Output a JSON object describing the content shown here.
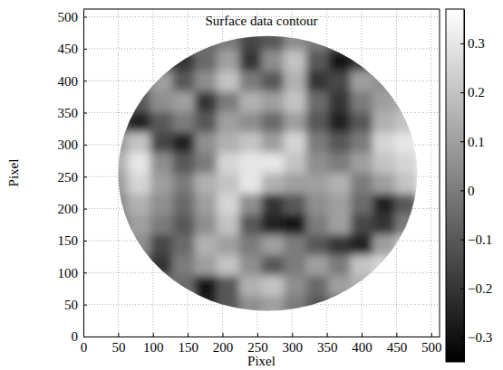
{
  "chart_data": {
    "type": "heatmap",
    "title": "Surface data contour",
    "x_label": "Pixel",
    "y_label": "Pixel",
    "xlim": [
      0,
      512
    ],
    "ylim": [
      0,
      512
    ],
    "xticks": [
      0,
      50,
      100,
      150,
      200,
      250,
      300,
      350,
      400,
      450,
      500
    ],
    "yticks": [
      0,
      50,
      100,
      150,
      200,
      250,
      300,
      350,
      400,
      450,
      500
    ],
    "grid": true,
    "x": [
      16,
      48,
      80,
      112,
      144,
      176,
      208,
      240,
      272,
      304,
      336,
      368,
      400,
      432,
      464,
      496
    ],
    "y": [
      16,
      48,
      80,
      112,
      144,
      176,
      208,
      240,
      272,
      304,
      336,
      368,
      400,
      432,
      464,
      496
    ],
    "cells": [
      [
        null,
        null,
        null,
        null,
        null,
        null,
        null,
        null,
        null,
        null,
        null,
        null,
        null,
        null,
        null,
        null
      ],
      [
        null,
        null,
        null,
        null,
        null,
        -0.25,
        -0.1,
        0.05,
        0.1,
        0,
        -0.1,
        -0.05,
        null,
        null,
        null,
        null
      ],
      [
        null,
        null,
        null,
        0,
        -0.05,
        -0.3,
        -0.1,
        0.15,
        0.2,
        0.05,
        -0.05,
        0.1,
        0.15,
        null,
        null,
        null
      ],
      [
        null,
        null,
        -0.1,
        -0.2,
        0,
        0.1,
        0.2,
        0.05,
        -0.1,
        0,
        0.1,
        0,
        0.2,
        0.25,
        null,
        null
      ],
      [
        null,
        null,
        0.05,
        -0.15,
        -0.05,
        0.15,
        0.1,
        0,
        0.1,
        0,
        -0.1,
        -0.2,
        -0.25,
        0.1,
        0.2,
        null
      ],
      [
        null,
        0,
        0.1,
        0,
        -0.1,
        0.05,
        0.2,
        -0.1,
        -0.25,
        -0.3,
        0,
        0.1,
        -0.15,
        -0.2,
        0,
        null
      ],
      [
        null,
        0.05,
        0.15,
        0.05,
        -0.05,
        0.1,
        0.25,
        0.05,
        -0.2,
        -0.1,
        0.05,
        0.1,
        -0.05,
        -0.25,
        -0.1,
        null
      ],
      [
        null,
        0.1,
        0.25,
        0.1,
        0,
        0.15,
        0.2,
        0.3,
        0.15,
        0.1,
        0.1,
        0.15,
        0,
        0.1,
        0.2,
        null
      ],
      [
        null,
        0.15,
        0.3,
        0.05,
        -0.1,
        0,
        0.25,
        0.3,
        0.3,
        0.2,
        0.05,
        0,
        0.1,
        0.2,
        0.25,
        null
      ],
      [
        null,
        0.1,
        0.2,
        -0.15,
        -0.25,
        0.05,
        0.15,
        0.2,
        0.1,
        0.25,
        0,
        -0.1,
        0,
        0.25,
        0.3,
        null
      ],
      [
        null,
        -0.15,
        -0.25,
        -0.1,
        0,
        -0.1,
        0.1,
        0.05,
        -0.05,
        0.1,
        -0.1,
        -0.25,
        -0.1,
        0.15,
        0.2,
        null
      ],
      [
        null,
        null,
        -0.1,
        0.05,
        0.1,
        -0.2,
        0,
        0.15,
        0.1,
        0.2,
        -0.05,
        -0.2,
        0,
        0.1,
        0.15,
        null
      ],
      [
        null,
        null,
        0,
        0.1,
        -0.1,
        0.05,
        0.2,
        0,
        -0.1,
        0.15,
        -0.2,
        -0.15,
        0.1,
        0.05,
        null,
        null
      ],
      [
        null,
        null,
        null,
        -0.15,
        -0.2,
        -0.05,
        0.1,
        -0.2,
        0.05,
        0.2,
        -0.1,
        -0.3,
        -0.2,
        null,
        null,
        null
      ],
      [
        null,
        null,
        null,
        null,
        null,
        -0.05,
        0,
        -0.15,
        -0.1,
        0.05,
        0,
        -0.1,
        null,
        null,
        null,
        null
      ],
      [
        null,
        null,
        null,
        null,
        null,
        null,
        null,
        null,
        null,
        null,
        null,
        null,
        null,
        null,
        null,
        null
      ]
    ],
    "aperture": {
      "cx": 265,
      "cy": 255,
      "r": 215
    },
    "colorbar_range": [
      -0.35,
      0.37
    ],
    "colorbar_ticks": [
      {
        "value": -0.3,
        "label": "−0.3"
      },
      {
        "value": -0.2,
        "label": "−0.2"
      },
      {
        "value": -0.1,
        "label": "−0.1"
      },
      0,
      0.1,
      0.2,
      0.3
    ]
  }
}
